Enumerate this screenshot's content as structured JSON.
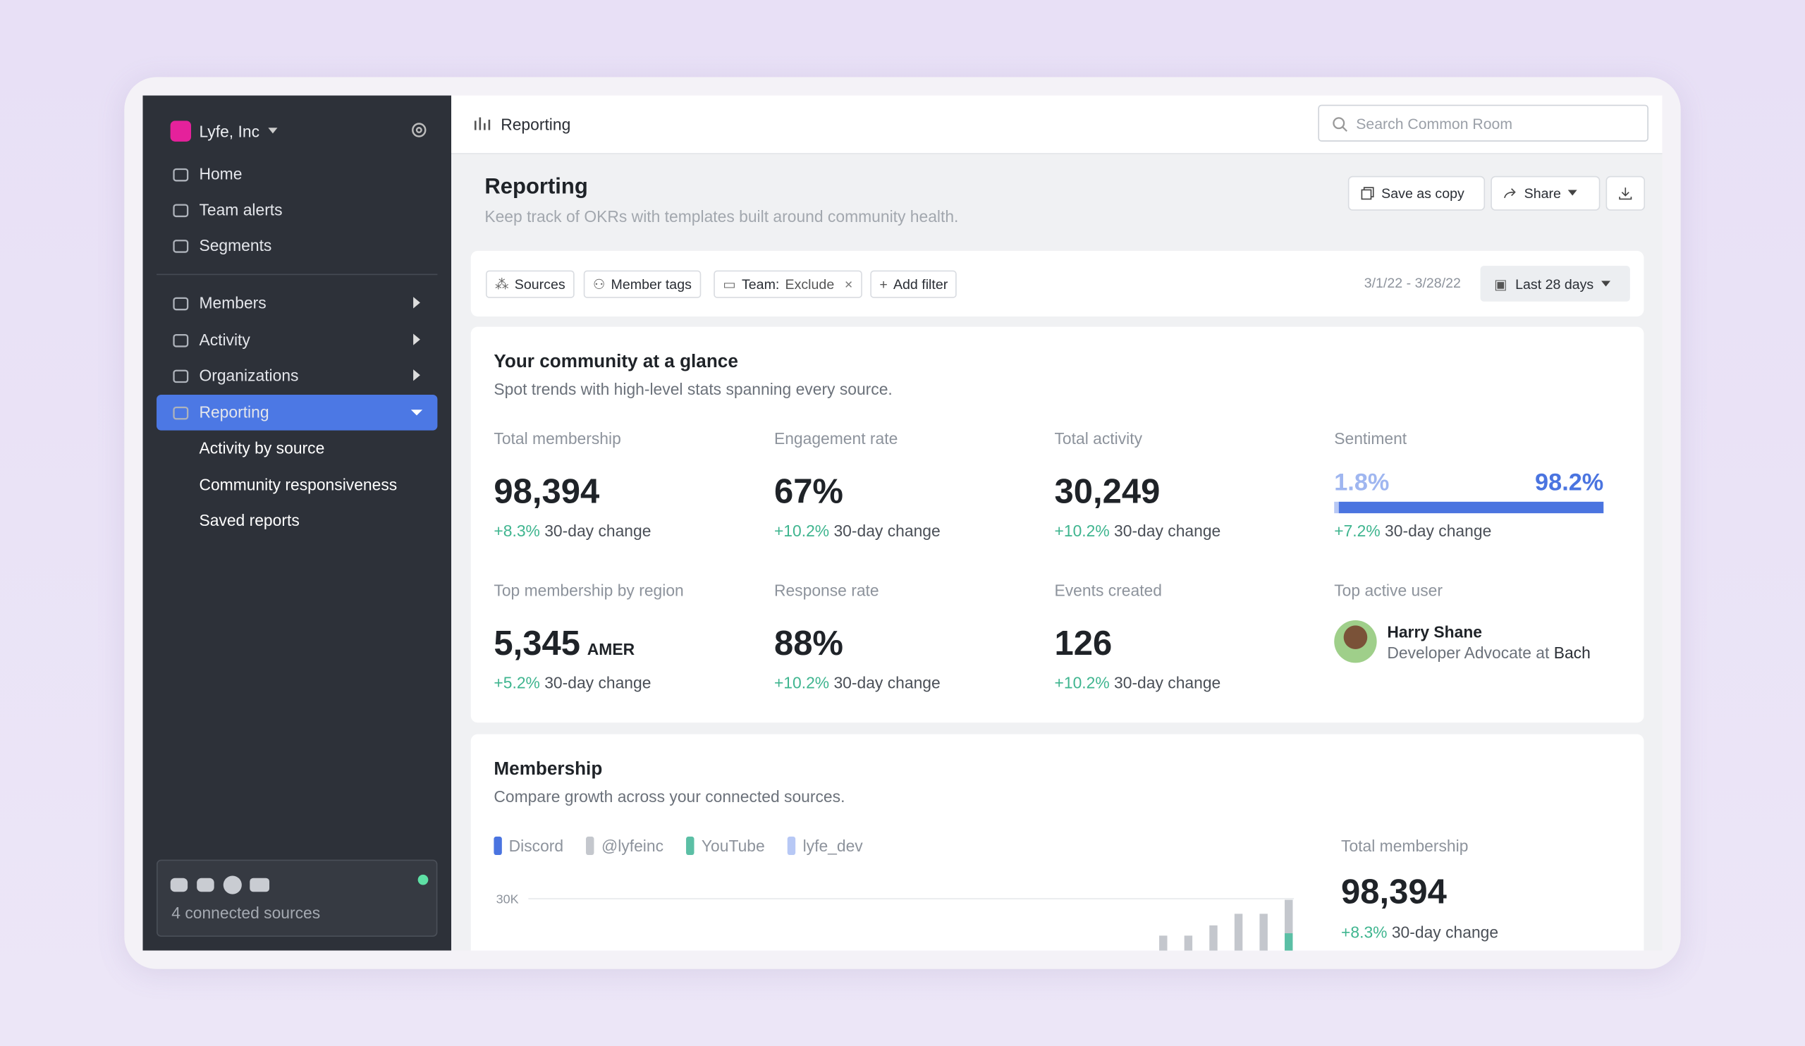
{
  "sidebar": {
    "org": "Lyfe, Inc",
    "nav": [
      "Home",
      "Team alerts",
      "Segments"
    ],
    "sections": [
      "Members",
      "Activity",
      "Organizations",
      "Reporting"
    ],
    "subnav": [
      "Activity by source",
      "Community responsiveness",
      "Saved reports"
    ],
    "sources": "4 connected sources"
  },
  "topbar": {
    "breadcrumb": "Reporting",
    "search_placeholder": "Search Common Room"
  },
  "header": {
    "title": "Reporting",
    "subtitle": "Keep track of OKRs with templates built around community health.",
    "buttons": [
      "Save as copy",
      "Share"
    ]
  },
  "filters": {
    "chips": [
      "Sources",
      "Member tags"
    ],
    "team_label": "Team:",
    "team_value": "Exclude",
    "add": "Add filter",
    "date_range": "3/1/22 - 3/28/22",
    "period": "Last 28 days"
  },
  "glance": {
    "title": "Your community at a glance",
    "subtitle": "Spot trends with high-level stats spanning every source.",
    "stats": [
      {
        "label": "Total membership",
        "value": "98,394",
        "change": "+8.3%",
        "note": "30-day change"
      },
      {
        "label": "Engagement rate",
        "value": "67%",
        "change": "+10.2%",
        "note": "30-day change"
      },
      {
        "label": "Total activity",
        "value": "30,249",
        "change": "+10.2%",
        "note": "30-day change"
      },
      {
        "label": "Top membership by region",
        "value": "5,345",
        "suffix": "AMER",
        "change": "+5.2%",
        "note": "30-day change"
      },
      {
        "label": "Response rate",
        "value": "88%",
        "change": "+10.2%",
        "note": "30-day change"
      },
      {
        "label": "Events created",
        "value": "126",
        "change": "+10.2%",
        "note": "30-day change"
      }
    ],
    "sentiment": {
      "label": "Sentiment",
      "negative": 1.8,
      "negative_label": "1.8%",
      "positive": 98.2,
      "positive_label": "98.2%",
      "change": "+7.2%",
      "note": "30-day change"
    },
    "top_user": {
      "label": "Top active user",
      "name": "Harry Shane",
      "role": "Developer Advocate at",
      "company": "Bach"
    }
  },
  "membership": {
    "title": "Membership",
    "subtitle": "Compare growth across your connected sources.",
    "total_label": "Total membership",
    "total": "98,394",
    "change": "+8.3%",
    "note": "30-day change",
    "chart_data": {
      "type": "bar",
      "stacked": true,
      "ylim": [
        0,
        30000
      ],
      "yticks": [
        {
          "value": 30000,
          "label": "30K"
        }
      ],
      "grid": true,
      "series": [
        {
          "name": "Discord",
          "color": "#4a74e0",
          "values": [
            null,
            null,
            null,
            null,
            null,
            null
          ]
        },
        {
          "name": "@lyfeinc",
          "color": "#c4c7cd",
          "values": [
            19200,
            19200,
            22200,
            25600,
            25600,
            9800
          ]
        },
        {
          "name": "YouTube",
          "color": "#5bbfa5",
          "values": [
            null,
            null,
            null,
            null,
            null,
            19900
          ]
        },
        {
          "name": "lyfe_dev",
          "color": "#b7c8f5",
          "values": [
            null,
            null,
            null,
            null,
            null,
            null
          ]
        }
      ]
    }
  }
}
